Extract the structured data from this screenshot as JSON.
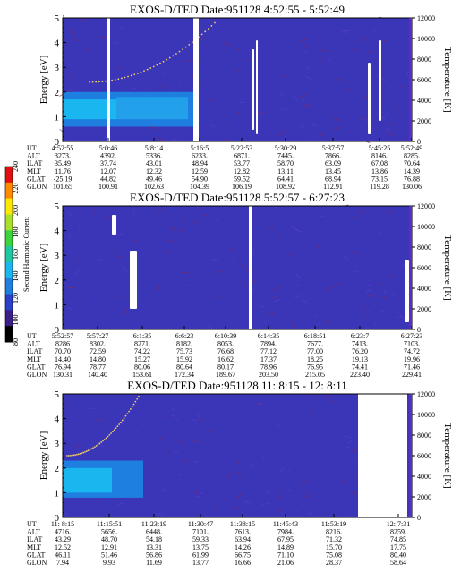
{
  "chart_data": [
    {
      "type": "heatmap",
      "title": "EXOS-D/TED  Date:951128  4:52:55 - 5:52:49",
      "ylabel": "Energy [eV]",
      "y2label": "Temperature [K]",
      "ylim": [
        0,
        5
      ],
      "y2lim": [
        0,
        12000
      ],
      "yticks": [
        "0",
        "1",
        "2",
        "3",
        "4",
        "5"
      ],
      "y2ticks": [
        "0",
        "2000",
        "4000",
        "6000",
        "8000",
        "10000",
        "12000"
      ],
      "row_labels": [
        "UT",
        "ALT",
        "ILAT",
        "MLT",
        "GLAT",
        "GLON"
      ],
      "columns": [
        [
          "4:52:55",
          "3273.",
          "35.49",
          "11.76",
          "-25.19",
          "101.65"
        ],
        [
          "5:0:46",
          "4392.",
          "37.74",
          "12.07",
          "44.82",
          "100.91"
        ],
        [
          "5:8:14",
          "5336.",
          "43.01",
          "12.32",
          "49.46",
          "102.63"
        ],
        [
          "5:16:5",
          "6233.",
          "48.94",
          "12.59",
          "54.90",
          "104.39"
        ],
        [
          "5:22:53",
          "6871.",
          "53.77",
          "12.82",
          "59.52",
          "106.19"
        ],
        [
          "5:30:29",
          "7445.",
          "58.70",
          "13.11",
          "64.41",
          "108.92"
        ],
        [
          "5:37:57",
          "7866.",
          "63.09",
          "13.45",
          "68.94",
          "112.91"
        ],
        [
          "5:45:25",
          "8146.",
          "67.08",
          "13.86",
          "73.15",
          "119.28"
        ],
        [
          "5:52:49",
          "8285.",
          "70.64",
          "14.39",
          "76.88",
          "130.06"
        ]
      ]
    },
    {
      "type": "heatmap",
      "title": "EXOS-D/TED  Date:951128  5:52:57 - 6:27:23",
      "ylabel": "Energy [eV]",
      "y2label": "Temperature [K]",
      "ylim": [
        0,
        5
      ],
      "y2lim": [
        0,
        12000
      ],
      "yticks": [
        "0",
        "1",
        "2",
        "3",
        "4",
        "5"
      ],
      "y2ticks": [
        "0",
        "2000",
        "4000",
        "6000",
        "8000",
        "10000",
        "12000"
      ],
      "row_labels": [
        "UT",
        "ALT",
        "ILAT",
        "MLT",
        "GLAT",
        "GLON"
      ],
      "columns": [
        [
          "5:52:57",
          "8286",
          "70.70",
          "14.40",
          "76.94",
          "130.31"
        ],
        [
          "5:57:27",
          "8302.",
          "72.59",
          "14.80",
          "78.77",
          "140.40"
        ],
        [
          "6:1:35",
          "8271.",
          "74.22",
          "15.27",
          "80.06",
          "153.61"
        ],
        [
          "6:6:23",
          "8182.",
          "75.73",
          "15.92",
          "80.64",
          "172.34"
        ],
        [
          "6:10:39",
          "8053.",
          "76.68",
          "16.62",
          "80.17",
          "189.67"
        ],
        [
          "6:14:35",
          "7894.",
          "77.12",
          "17.37",
          "78.96",
          "203.50"
        ],
        [
          "6:18:51",
          "7677.",
          "77.00",
          "18.25",
          "76.95",
          "215.05"
        ],
        [
          "6:23:7",
          "7413.",
          "76.20",
          "19.13",
          "74.41",
          "223.40"
        ],
        [
          "6:27:23",
          "7103.",
          "74.72",
          "19.96",
          "71.46",
          "229.41"
        ]
      ],
      "colorbar": {
        "label": "Second Harmonic Current",
        "ticks": [
          "80",
          "100",
          "120",
          "140",
          "160",
          "180",
          "200",
          "220",
          "240"
        ]
      }
    },
    {
      "type": "heatmap",
      "title": "EXOS-D/TED  Date:951128  11: 8:15 - 12: 8:11",
      "ylabel": "Energy [eV]",
      "y2label": "Temperature [K]",
      "ylim": [
        0,
        5
      ],
      "y2lim": [
        0,
        12000
      ],
      "yticks": [
        "0",
        "1",
        "2",
        "3",
        "4",
        "5"
      ],
      "y2ticks": [
        "0",
        "2000",
        "4000",
        "6000",
        "8000",
        "10000",
        "12000"
      ],
      "row_labels": [
        "UT",
        "ALT",
        "ILAT",
        "MLT",
        "GLAT",
        "GLON"
      ],
      "columns": [
        [
          "11: 8:15",
          "4716.",
          "43.29",
          "12.52",
          "46.11",
          "7.94"
        ],
        [
          "11:15:51",
          "5656.",
          "48.70",
          "12.91",
          "51.46",
          "9.93"
        ],
        [
          "11:23:19",
          "6448.",
          "54.18",
          "13.31",
          "56.86",
          "11.69"
        ],
        [
          "11:30:47",
          "7101.",
          "59.33",
          "13.75",
          "61.99",
          "13.77"
        ],
        [
          "11:38:15",
          "7613.",
          "63.94",
          "14.26",
          "66.75",
          "16.66"
        ],
        [
          "11:45:43",
          "7984.",
          "67.95",
          "14.89",
          "71.10",
          "21.06"
        ],
        [
          "11:53:19",
          "8216.",
          "71.32",
          "15.70",
          "75.08",
          "28.37"
        ],
        [
          "12: 7:31",
          "8259.",
          "74.85",
          "17.75",
          "80.40",
          "58.64"
        ]
      ]
    }
  ]
}
